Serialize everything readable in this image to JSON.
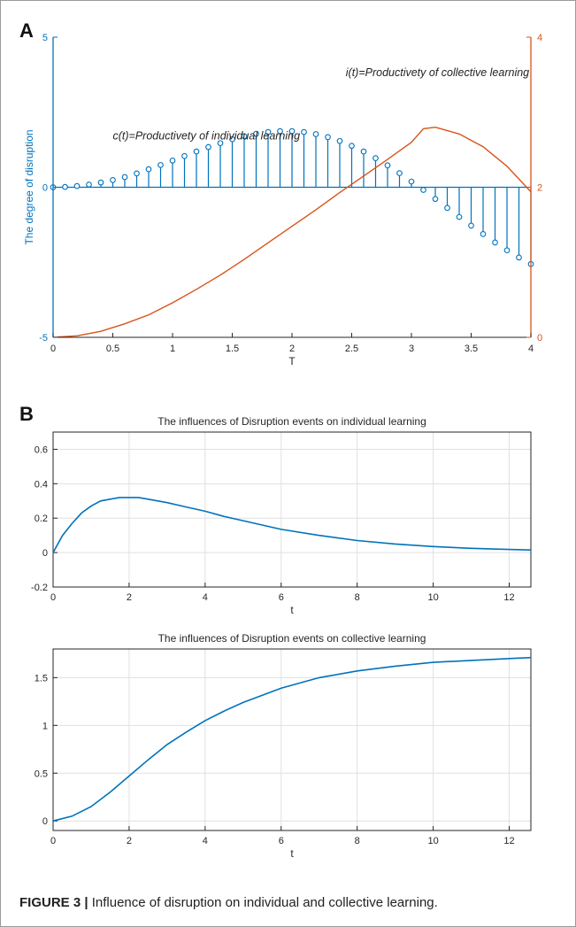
{
  "panel_a_letter": "A",
  "panel_b_letter": "B",
  "caption": {
    "label": "FIGURE 3 |",
    "text": " Influence of disruption on individual and collective learning."
  },
  "colors": {
    "blue": "#0072bd",
    "orange": "#d95319",
    "axis": "#262626",
    "grid": "#e0e0e0"
  },
  "chart_data": [
    {
      "type": "line",
      "title": "",
      "xlabel": "T",
      "ylabel": "The degree of disruption",
      "xlim": [
        0,
        4
      ],
      "ylim": [
        -5,
        5
      ],
      "y2lim": [
        0,
        4
      ],
      "xticks": [
        "0",
        "0.5",
        "1",
        "1.5",
        "2",
        "2.5",
        "3",
        "3.5",
        "4"
      ],
      "yticks": [
        "-5",
        "0",
        "5"
      ],
      "y2ticks": [
        "0",
        "2",
        "4"
      ],
      "grid": false,
      "annotations": [
        {
          "text": "c(t)=Productivety of individual learning",
          "x": 0.5,
          "y": 1.6
        },
        {
          "text": "i(t)=Productivety of collective learning",
          "x": 2.45,
          "y": 3.7
        }
      ],
      "series": [
        {
          "style": "stem",
          "axis": "left",
          "x": [
            0,
            0.1,
            0.2,
            0.3,
            0.4,
            0.5,
            0.6,
            0.7,
            0.8,
            0.9,
            1.0,
            1.1,
            1.2,
            1.3,
            1.4,
            1.5,
            1.6,
            1.7,
            1.8,
            1.9,
            2.0,
            2.1,
            2.2,
            2.3,
            2.4,
            2.5,
            2.6,
            2.7,
            2.8,
            2.9,
            3.0,
            3.1,
            3.2,
            3.3,
            3.4,
            3.5,
            3.6,
            3.7,
            3.8,
            3.9,
            4.0
          ],
          "values": [
            0,
            0.01,
            0.04,
            0.09,
            0.16,
            0.24,
            0.34,
            0.46,
            0.6,
            0.74,
            0.89,
            1.04,
            1.19,
            1.34,
            1.47,
            1.6,
            1.7,
            1.78,
            1.84,
            1.87,
            1.87,
            1.84,
            1.77,
            1.67,
            1.54,
            1.38,
            1.19,
            0.97,
            0.73,
            0.47,
            0.19,
            -0.09,
            -0.39,
            -0.69,
            -0.99,
            -1.28,
            -1.56,
            -1.84,
            -2.1,
            -2.34,
            -2.56
          ]
        },
        {
          "style": "line",
          "axis": "right",
          "x": [
            0,
            0.2,
            0.4,
            0.6,
            0.8,
            1.0,
            1.2,
            1.4,
            1.6,
            1.8,
            2.0,
            2.2,
            2.4,
            2.6,
            2.8,
            3.0,
            3.1,
            3.2,
            3.4,
            3.6,
            3.8,
            4.0
          ],
          "values": [
            0,
            0.02,
            0.08,
            0.18,
            0.3,
            0.46,
            0.64,
            0.83,
            1.04,
            1.26,
            1.48,
            1.7,
            1.93,
            2.15,
            2.37,
            2.6,
            2.78,
            2.8,
            2.71,
            2.54,
            2.28,
            1.94
          ]
        }
      ]
    },
    {
      "type": "line",
      "title": "The influences of Disruption events on individual learning",
      "xlabel": "t",
      "ylabel": "",
      "xlim": [
        0,
        12.57
      ],
      "ylim": [
        -0.2,
        0.7
      ],
      "xticks": [
        "0",
        "2",
        "4",
        "6",
        "8",
        "10",
        "12"
      ],
      "yticks": [
        "-0.2",
        "0",
        "0.2",
        "0.4",
        "0.6"
      ],
      "grid": true,
      "series": [
        {
          "x": [
            0,
            0.25,
            0.5,
            0.75,
            1.0,
            1.25,
            1.5,
            1.75,
            2.0,
            2.25,
            2.5,
            3.0,
            3.5,
            4.0,
            4.5,
            5.0,
            5.5,
            6.0,
            7.0,
            8.0,
            9.0,
            10.0,
            11.0,
            12.0,
            12.57
          ],
          "values": [
            0,
            0.1,
            0.17,
            0.23,
            0.27,
            0.3,
            0.31,
            0.32,
            0.32,
            0.32,
            0.31,
            0.29,
            0.265,
            0.24,
            0.21,
            0.185,
            0.16,
            0.135,
            0.1,
            0.07,
            0.05,
            0.035,
            0.025,
            0.018,
            0.015
          ]
        }
      ]
    },
    {
      "type": "line",
      "title": "The influences of Disruption events on collective learning",
      "xlabel": "t",
      "ylabel": "",
      "xlim": [
        0,
        12.57
      ],
      "ylim": [
        -0.1,
        1.8
      ],
      "xticks": [
        "0",
        "2",
        "4",
        "6",
        "8",
        "10",
        "12"
      ],
      "yticks": [
        "0",
        "0.5",
        "1",
        "1.5"
      ],
      "grid": true,
      "series": [
        {
          "x": [
            0,
            0.5,
            1.0,
            1.5,
            2.0,
            2.5,
            3.0,
            3.5,
            4.0,
            4.5,
            5.0,
            6.0,
            7.0,
            8.0,
            9.0,
            10.0,
            11.0,
            12.0,
            12.57
          ],
          "values": [
            0,
            0.05,
            0.15,
            0.3,
            0.47,
            0.64,
            0.8,
            0.93,
            1.05,
            1.15,
            1.24,
            1.39,
            1.5,
            1.57,
            1.62,
            1.66,
            1.68,
            1.7,
            1.71
          ]
        }
      ]
    }
  ]
}
